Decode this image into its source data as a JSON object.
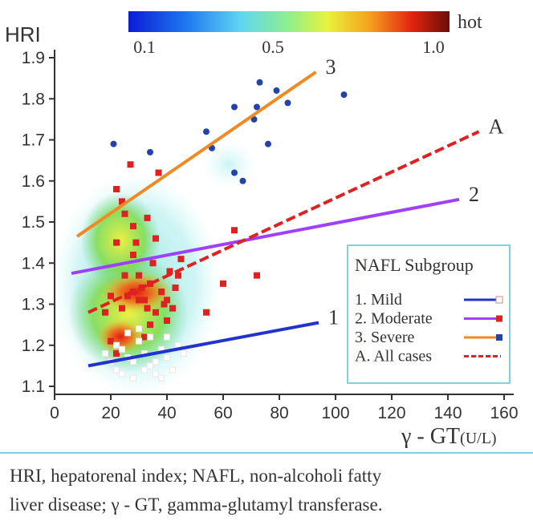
{
  "chart_data": {
    "type": "scatter",
    "y_axis_title": "HRI",
    "x_axis_title": "γ - GT",
    "x_axis_unit": "(U/L)",
    "xlim": [
      0,
      160
    ],
    "ylim": [
      1.1,
      1.9
    ],
    "x_ticks": [
      0,
      20,
      40,
      60,
      80,
      100,
      120,
      140,
      160
    ],
    "y_ticks": [
      "1.1",
      "1.2",
      "1.3",
      "1.4",
      "1.5",
      "1.6",
      "1.7",
      "1.8",
      "1.9"
    ],
    "colorbar": {
      "labels": [
        "0.1",
        "0.5",
        "1.0"
      ],
      "label_values": [
        0.1,
        0.5,
        1.0
      ],
      "hot_label": "hot",
      "range": [
        0.05,
        1.05
      ]
    },
    "legend": {
      "title": "NAFL Subgroup",
      "placement": "lower-right",
      "entries": [
        {
          "label": "1. Mild",
          "color": "#2233cc",
          "marker": "#ffffff"
        },
        {
          "label": "2. Moderate",
          "color": "#a040ff",
          "marker": "#dd2222"
        },
        {
          "label": "3. Severe",
          "color": "#f08a24",
          "marker": "#2244aa"
        },
        {
          "label": "A. All cases",
          "color": "#dd2222",
          "dashed": true
        }
      ]
    },
    "lines": [
      {
        "label": "1",
        "color": "#2233cc",
        "x": [
          12,
          94
        ],
        "y": [
          1.15,
          1.255
        ]
      },
      {
        "label": "2",
        "color": "#a040ff",
        "x": [
          6,
          144
        ],
        "y": [
          1.375,
          1.555
        ]
      },
      {
        "label": "3",
        "color": "#f08a24",
        "x": [
          8,
          93
        ],
        "y": [
          1.465,
          1.865
        ]
      },
      {
        "label": "A",
        "color": "#dd2222",
        "dashed": true,
        "x": [
          12,
          151
        ],
        "y": [
          1.28,
          1.72
        ]
      }
    ],
    "series": [
      {
        "name": "3. Severe",
        "color": "#2244aa",
        "points": [
          [
            21,
            1.69
          ],
          [
            34,
            1.67
          ],
          [
            54,
            1.72
          ],
          [
            56,
            1.68
          ],
          [
            64,
            1.78
          ],
          [
            64,
            1.62
          ],
          [
            67,
            1.6
          ],
          [
            72,
            1.78
          ],
          [
            73,
            1.84
          ],
          [
            71,
            1.75
          ],
          [
            76,
            1.69
          ],
          [
            79,
            1.82
          ],
          [
            83,
            1.79
          ],
          [
            103,
            1.81
          ]
        ]
      },
      {
        "name": "2. Moderate",
        "color": "#dd2222",
        "points": [
          [
            18,
            1.28
          ],
          [
            20,
            1.32
          ],
          [
            22,
            1.45
          ],
          [
            24,
            1.55
          ],
          [
            25,
            1.52
          ],
          [
            27,
            1.64
          ],
          [
            28,
            1.42
          ],
          [
            30,
            1.37
          ],
          [
            31,
            1.34
          ],
          [
            32,
            1.31
          ],
          [
            33,
            1.29
          ],
          [
            34,
            1.35
          ],
          [
            35,
            1.4
          ],
          [
            36,
            1.46
          ],
          [
            37,
            1.62
          ],
          [
            38,
            1.33
          ],
          [
            39,
            1.3
          ],
          [
            40,
            1.26
          ],
          [
            41,
            1.38
          ],
          [
            42,
            1.29
          ],
          [
            43,
            1.34
          ],
          [
            20,
            1.21
          ],
          [
            22,
            1.18
          ],
          [
            24,
            1.29
          ],
          [
            26,
            1.32
          ],
          [
            28,
            1.33
          ],
          [
            30,
            1.31
          ],
          [
            32,
            1.22
          ],
          [
            34,
            1.25
          ],
          [
            36,
            1.28
          ],
          [
            38,
            1.33
          ],
          [
            40,
            1.31
          ],
          [
            25,
            1.37
          ],
          [
            29,
            1.45
          ],
          [
            33,
            1.51
          ],
          [
            22,
            1.58
          ],
          [
            28,
            1.49
          ],
          [
            44,
            1.37
          ],
          [
            45,
            1.41
          ],
          [
            54,
            1.28
          ],
          [
            60,
            1.35
          ],
          [
            64,
            1.48
          ],
          [
            72,
            1.37
          ]
        ]
      },
      {
        "name": "1. Mild",
        "color": "#ffffff",
        "points": [
          [
            18,
            1.18
          ],
          [
            20,
            1.16
          ],
          [
            22,
            1.2
          ],
          [
            24,
            1.19
          ],
          [
            26,
            1.17
          ],
          [
            28,
            1.16
          ],
          [
            30,
            1.21
          ],
          [
            32,
            1.18
          ],
          [
            34,
            1.15
          ],
          [
            36,
            1.13
          ],
          [
            38,
            1.19
          ],
          [
            40,
            1.17
          ],
          [
            24,
            1.13
          ],
          [
            28,
            1.12
          ],
          [
            32,
            1.14
          ],
          [
            36,
            1.16
          ],
          [
            42,
            1.14
          ],
          [
            44,
            1.2
          ],
          [
            46,
            1.18
          ],
          [
            26,
            1.23
          ],
          [
            30,
            1.24
          ],
          [
            34,
            1.22
          ],
          [
            22,
            1.14
          ],
          [
            38,
            1.12
          ],
          [
            40,
            1.22
          ]
        ]
      }
    ]
  },
  "caption": {
    "line1": "HRI, hepatorenal index; NAFL, non-alcoholi fatty",
    "line2": "liver disease; γ - GT, gamma-glutamyl transferase."
  }
}
